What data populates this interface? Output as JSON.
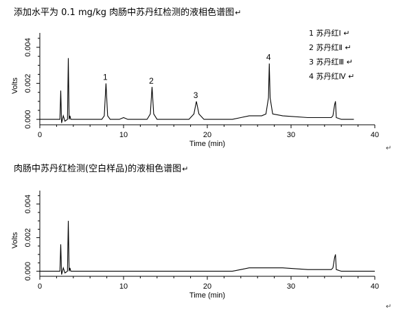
{
  "chart_data": [
    {
      "type": "line",
      "title": "添加水平为 0.1 mg/kg 肉肠中苏丹红检测的液相色谱图",
      "xlabel": "Time (min)",
      "ylabel": "Volts",
      "xlim": [
        0,
        40
      ],
      "ylim": [
        -0.0003,
        0.0048
      ],
      "xticks": [
        0,
        10,
        20,
        30,
        40
      ],
      "yticks": [
        0.0,
        0.002,
        0.004
      ],
      "ytick_labels": [
        "0.000",
        "0.002",
        "0.004"
      ],
      "grid": false,
      "legend_position": "top-right",
      "legend": [
        "1 苏丹红Ⅰ",
        "2 苏丹红Ⅱ",
        "3 苏丹红Ⅲ",
        "4 苏丹红Ⅳ"
      ],
      "peaks": [
        {
          "label": "1",
          "x": 7.9,
          "y": 0.002
        },
        {
          "label": "2",
          "x": 13.4,
          "y": 0.0018
        },
        {
          "label": "3",
          "x": 18.7,
          "y": 0.001
        },
        {
          "label": "4",
          "x": 27.4,
          "y": 0.0031
        }
      ],
      "series": [
        {
          "x": [
            0,
            2.0,
            2.4,
            2.5,
            2.6,
            2.8,
            3.0,
            3.3,
            3.4,
            3.5,
            3.6,
            3.7,
            4.0,
            7.4,
            7.7,
            7.9,
            8.1,
            8.4,
            9.5,
            10.0,
            10.5,
            12.8,
            13.2,
            13.4,
            13.6,
            14.0,
            17.8,
            18.4,
            18.7,
            19.0,
            19.6,
            22.0,
            23.0,
            24.0,
            25.0,
            26.5,
            27.0,
            27.3,
            27.4,
            27.5,
            27.8,
            29.0,
            32.0,
            34.8,
            35.0,
            35.2,
            35.3,
            35.4,
            36.0,
            37.5
          ],
          "y": [
            0.0,
            0.0,
            0.0,
            0.0016,
            -0.0002,
            0.0002,
            -0.0001,
            0.0,
            0.0034,
            0.0,
            0.0002,
            0.0,
            0.0,
            0.0,
            0.0002,
            0.002,
            0.0002,
            0.0,
            0.0,
            0.0001,
            0.0,
            0.0,
            0.0003,
            0.0018,
            0.0003,
            0.0,
            0.0,
            0.0003,
            0.001,
            0.0003,
            0.0,
            0.0,
            0.0,
            0.0001,
            0.0002,
            0.0002,
            0.0003,
            0.0012,
            0.0031,
            0.0012,
            0.0003,
            0.0002,
            0.0001,
            0.0001,
            0.0002,
            0.0008,
            0.001,
            0.0001,
            0.0,
            0.0
          ]
        }
      ]
    },
    {
      "type": "line",
      "title": "肉肠中苏丹红检测(空白样品)的液相色谱图",
      "xlabel": "Time (min)",
      "ylabel": "Volts",
      "xlim": [
        0,
        40
      ],
      "ylim": [
        -0.0003,
        0.0048
      ],
      "xticks": [
        0,
        10,
        20,
        30,
        40
      ],
      "yticks": [
        0.0,
        0.002,
        0.004
      ],
      "ytick_labels": [
        "0.000",
        "0.002",
        "0.004"
      ],
      "grid": false,
      "series": [
        {
          "x": [
            0,
            2.0,
            2.4,
            2.5,
            2.6,
            2.8,
            3.0,
            3.3,
            3.4,
            3.5,
            3.6,
            3.7,
            4.0,
            10.0,
            20.0,
            22.0,
            23.0,
            24.0,
            25.0,
            29.0,
            32.0,
            34.8,
            35.0,
            35.2,
            35.3,
            35.4,
            36.0,
            40.0
          ],
          "y": [
            0.0,
            0.0,
            0.0,
            0.0016,
            -0.0002,
            0.0002,
            -0.0001,
            0.0,
            0.003,
            0.0,
            0.0002,
            0.0,
            0.0,
            0.0,
            0.0,
            0.0,
            0.0,
            0.0001,
            0.0002,
            0.0002,
            0.0001,
            0.0001,
            0.0002,
            0.0008,
            0.001,
            0.0001,
            0.0,
            0.0
          ]
        }
      ]
    }
  ]
}
